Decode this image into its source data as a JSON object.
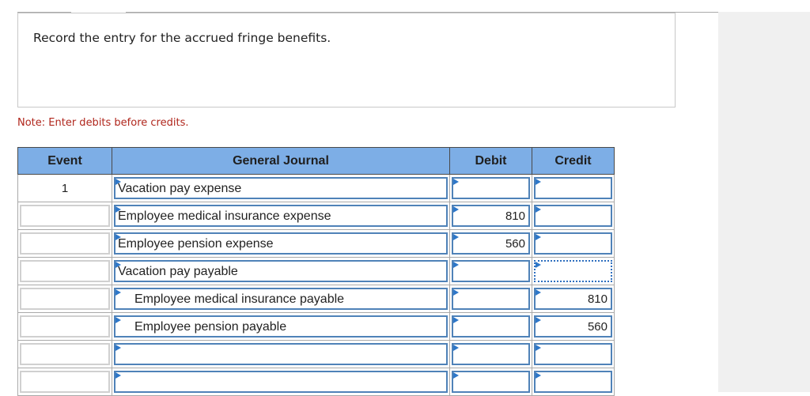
{
  "prompt": "Record the entry for the accrued fringe benefits.",
  "note": "Note: Enter debits before credits.",
  "table": {
    "headers": {
      "event": "Event",
      "journal": "General Journal",
      "debit": "Debit",
      "credit": "Credit"
    },
    "rows": [
      {
        "event": "1",
        "account": "Vacation pay expense",
        "indent": false,
        "debit": "",
        "credit": ""
      },
      {
        "event": "",
        "account": "Employee medical insurance expense",
        "indent": false,
        "debit": "810",
        "credit": ""
      },
      {
        "event": "",
        "account": "Employee pension expense",
        "indent": false,
        "debit": "560",
        "credit": ""
      },
      {
        "event": "",
        "account": "Vacation pay payable",
        "indent": false,
        "debit": "",
        "credit": ""
      },
      {
        "event": "",
        "account": "Employee medical insurance payable",
        "indent": true,
        "debit": "",
        "credit": "810"
      },
      {
        "event": "",
        "account": "Employee pension payable",
        "indent": true,
        "debit": "",
        "credit": "560"
      },
      {
        "event": "",
        "account": "",
        "indent": false,
        "debit": "",
        "credit": ""
      },
      {
        "event": "",
        "account": "",
        "indent": false,
        "debit": "",
        "credit": ""
      }
    ],
    "focused_cell": {
      "row": 3,
      "column": "credit"
    }
  },
  "colors": {
    "header_bg": "#7daee6",
    "input_border": "#4f82b8",
    "note_text": "#b0261c",
    "marker": "#2e77c8"
  }
}
